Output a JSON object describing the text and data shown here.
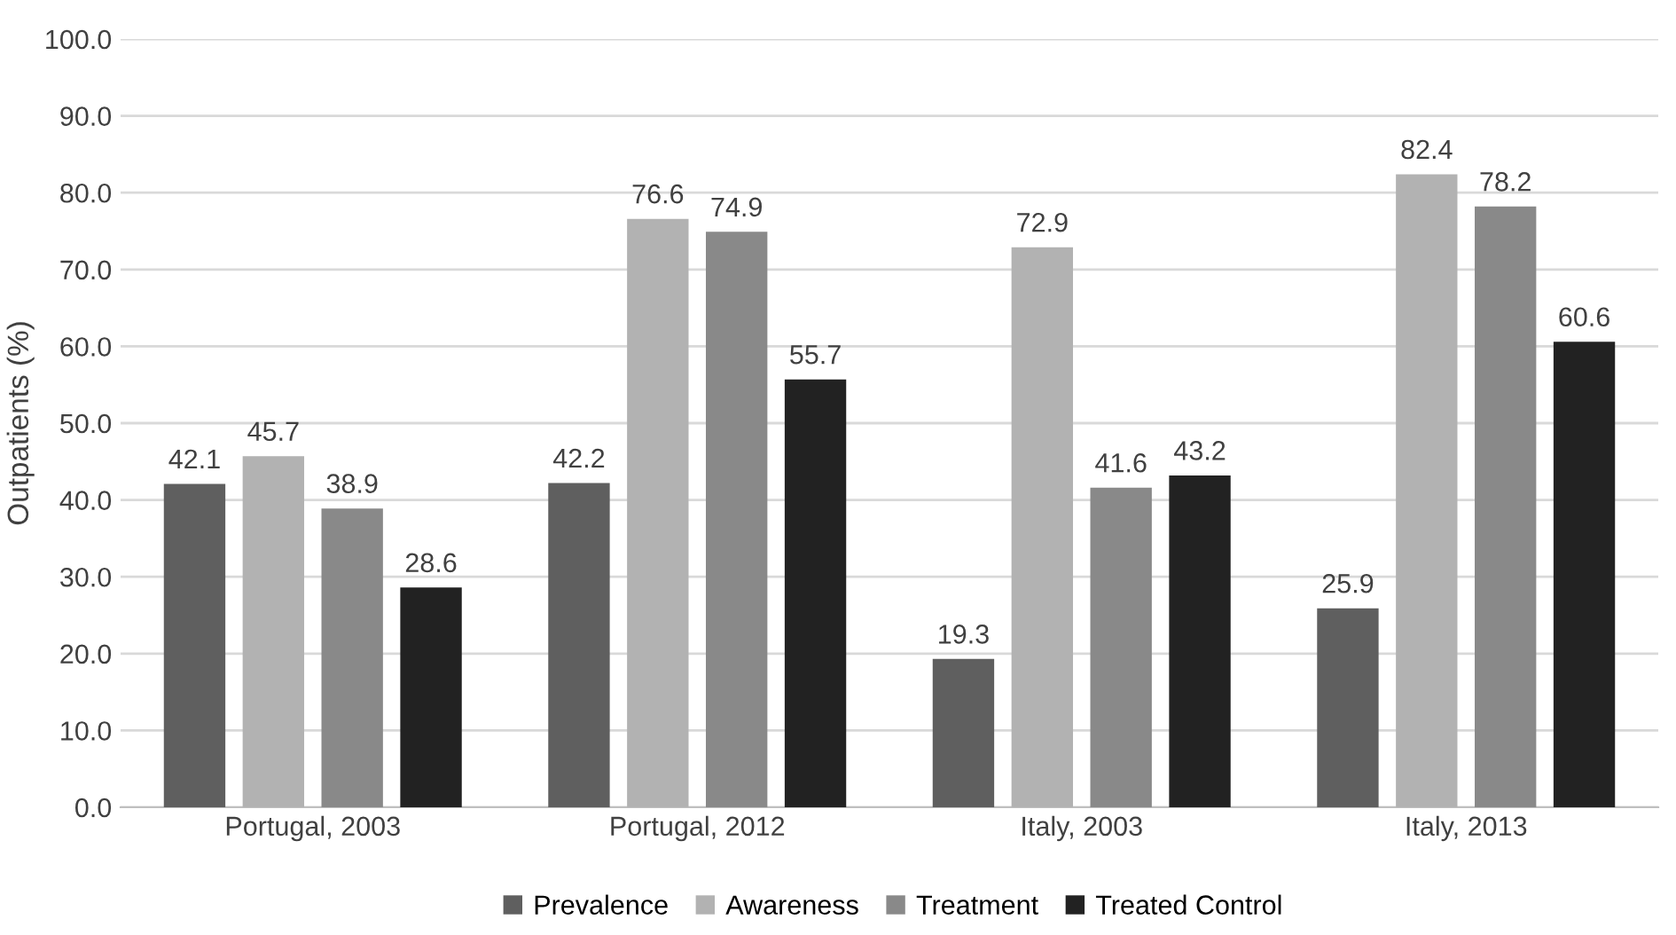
{
  "chart_data": {
    "type": "bar",
    "ylabel": "Outpatients (%)",
    "categories": [
      "Portugal, 2003",
      "Portugal, 2012",
      "Italy, 2003",
      "Italy, 2013"
    ],
    "series": [
      {
        "name": "Prevalence",
        "color": "#5f5f5f",
        "values": [
          42.1,
          42.2,
          19.3,
          25.9
        ]
      },
      {
        "name": "Awareness",
        "color": "#b2b2b2",
        "values": [
          45.7,
          76.6,
          72.9,
          82.4
        ]
      },
      {
        "name": "Treatment",
        "color": "#898989",
        "values": [
          38.9,
          74.9,
          41.6,
          78.2
        ]
      },
      {
        "name": "Treated Control",
        "color": "#222222",
        "values": [
          28.6,
          55.7,
          43.2,
          60.6
        ]
      }
    ],
    "ylim": [
      0,
      100
    ],
    "yticks": [
      {
        "value": 0,
        "label": "0.0"
      },
      {
        "value": 10,
        "label": "10.0"
      },
      {
        "value": 20,
        "label": "20.0"
      },
      {
        "value": 30,
        "label": "30.0"
      },
      {
        "value": 40,
        "label": "40.0"
      },
      {
        "value": 50,
        "label": "50.0"
      },
      {
        "value": 60,
        "label": "60.0"
      },
      {
        "value": 70,
        "label": "70.0"
      },
      {
        "value": 80,
        "label": "80.0"
      },
      {
        "value": 90,
        "label": "90.0"
      },
      {
        "value": 100,
        "label": "100.0"
      }
    ],
    "grid": "y",
    "legend": "bottom",
    "data_labels": true
  }
}
